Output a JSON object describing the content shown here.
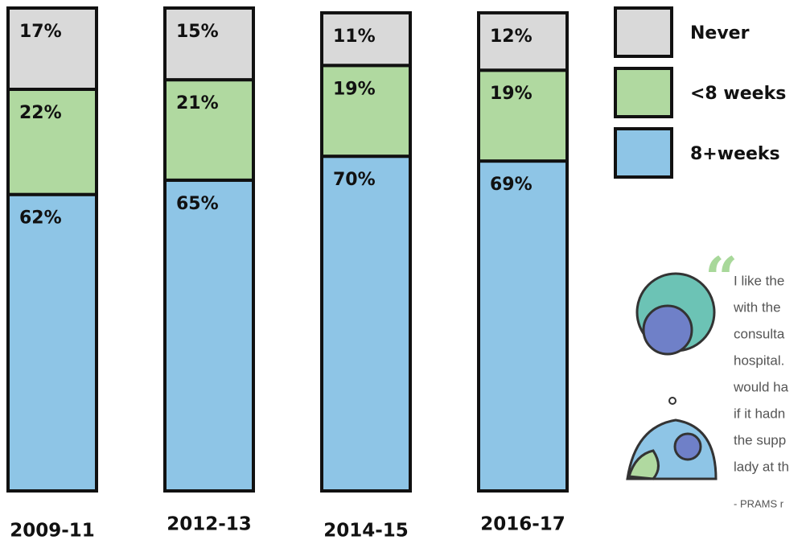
{
  "chart_data": {
    "type": "stacked-bar",
    "categories": [
      "2009-11",
      "2012-13",
      "2014-15",
      "2016-17"
    ],
    "series": [
      {
        "name": "8+weeks",
        "color": "#8ec5e6",
        "values": [
          62,
          65,
          70,
          69
        ],
        "value_labels": [
          "62%",
          "65%",
          "70%",
          "69%"
        ]
      },
      {
        "name": "<8 weeks",
        "color": "#b0d9a0",
        "values": [
          22,
          21,
          19,
          19
        ],
        "value_labels": [
          "22%",
          "21%",
          "19%",
          "19%"
        ]
      },
      {
        "name": "Never",
        "color": "#d9d9d9",
        "values": [
          17,
          15,
          11,
          12
        ],
        "value_labels": [
          "17%",
          "15%",
          "11%",
          "12%"
        ]
      }
    ]
  },
  "quote": {
    "lines": [
      "I like the",
      "with the",
      "consulta",
      "hospital.",
      "would ha",
      "if it hadn",
      "the supp",
      "lady at th"
    ],
    "source": "- PRAMS r"
  }
}
